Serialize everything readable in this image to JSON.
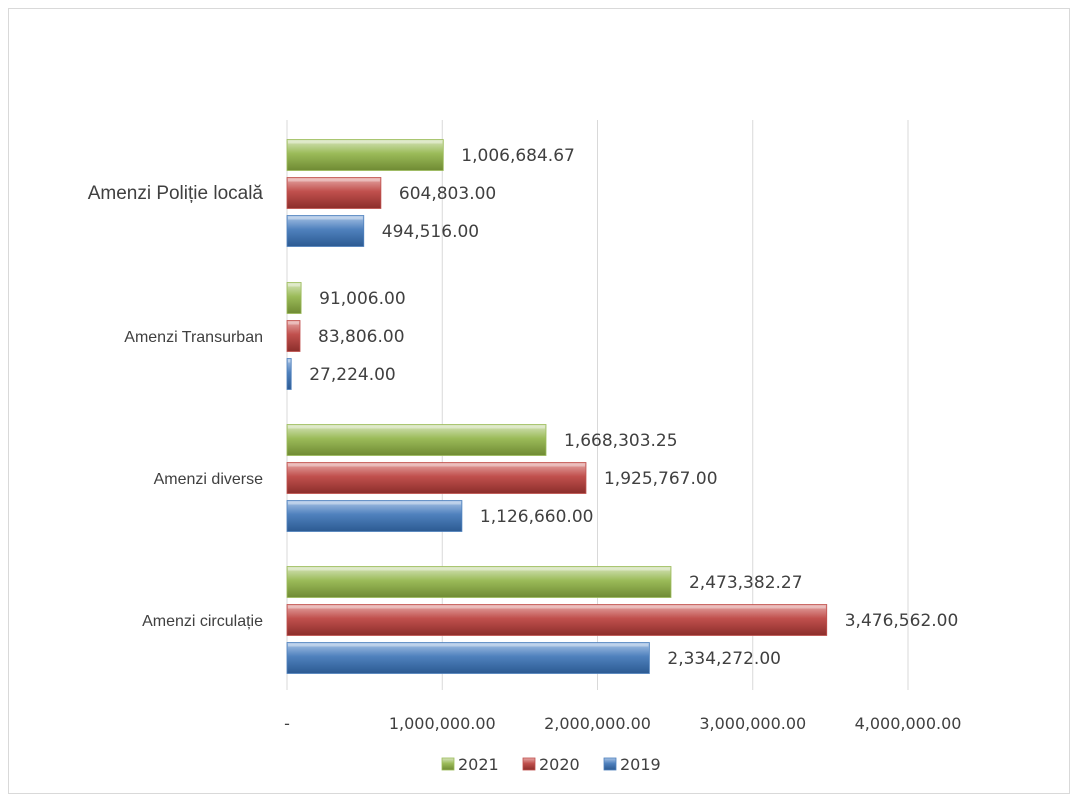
{
  "chart_data": {
    "type": "bar",
    "orientation": "horizontal",
    "title": "",
    "xlabel": "",
    "ylabel": "",
    "categories": [
      "Amenzi Poliție locală",
      "Amenzi Transurban",
      "Amenzi diverse",
      "Amenzi circulație"
    ],
    "series": [
      {
        "name": "2021",
        "color": "#9bbb59",
        "values": [
          1006684.67,
          91006.0,
          1668303.25,
          2473382.27
        ],
        "labels": [
          "1,006,684.67",
          "91,006.00",
          "1,668,303.25",
          "2,473,382.27"
        ]
      },
      {
        "name": "2020",
        "color": "#c0504d",
        "values": [
          604803.0,
          83806.0,
          1925767.0,
          3476562.0
        ],
        "labels": [
          "604,803.00",
          "83,806.00",
          "1,925,767.00",
          "3,476,562.00"
        ]
      },
      {
        "name": "2019",
        "color": "#4f81bd",
        "values": [
          494516.0,
          27224.0,
          1126660.0,
          2334272.0
        ],
        "labels": [
          "494,516.00",
          "27,224.00",
          "1,126,660.00",
          "2,334,272.00"
        ]
      }
    ],
    "xlim": [
      0,
      4000000
    ],
    "ticks": [
      0,
      1000000,
      2000000,
      3000000,
      4000000
    ],
    "tick_labels": [
      "-",
      "1,000,000.00",
      "2,000,000.00",
      "3,000,000.00",
      "4,000,000.00"
    ],
    "grid": "vertical",
    "legend_placement": "bottom",
    "legend": [
      "2021",
      "2020",
      "2019"
    ]
  }
}
